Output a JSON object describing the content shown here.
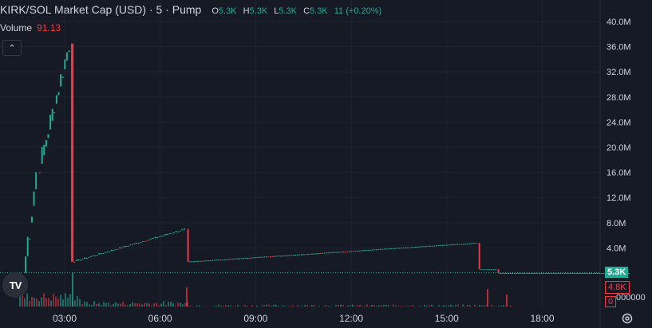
{
  "legend": {
    "title": "KIRK/SOL Market Cap (USD) · 5 · Pump",
    "ohlc": [
      {
        "k": "O",
        "v": "5.3K"
      },
      {
        "k": "H",
        "v": "5.3K"
      },
      {
        "k": "L",
        "v": "5.3K"
      },
      {
        "k": "C",
        "v": "5.3K"
      }
    ],
    "change": "11 (+0.20%)"
  },
  "volume_legend": {
    "label": "Volume",
    "value": "91.13"
  },
  "collapse_icon": "chevron-up-icon",
  "collapse_glyph": "⌃",
  "logo_text": "TV",
  "price_tag": "5.3K",
  "volume_tag": "4.8K",
  "zero_tag": "0",
  "volume_scale_label": "000000",
  "colors": {
    "up": "#22ab94",
    "down": "#f23645",
    "grid": "#1f2331",
    "bg": "#161a25",
    "text": "#d1d4dc"
  },
  "chart_data": {
    "type": "candlestick",
    "y_ticks": [
      "40.0M",
      "36.0M",
      "32.0M",
      "28.0M",
      "24.0M",
      "20.0M",
      "16.0M",
      "12.0M",
      "8.0M",
      "4.0M"
    ],
    "y_tick_values": [
      40,
      36,
      32,
      28,
      24,
      20,
      16,
      12,
      8,
      4
    ],
    "x_ticks": [
      "03:00",
      "06:00",
      "09:00",
      "12:00",
      "15:00",
      "18:00"
    ],
    "x_tick_hours": [
      3,
      6,
      9,
      12,
      15,
      18
    ],
    "ylim_millions": [
      0,
      40
    ],
    "current_price": "5.3K",
    "segments": [
      {
        "t0": 1.75,
        "t1": 2.2,
        "v0": 0.05,
        "v1": 16.0,
        "dir": "up"
      },
      {
        "t0": 2.2,
        "t1": 3.2,
        "v0": 16.0,
        "v1": 36.5,
        "dir": "up"
      },
      {
        "t0": 3.2,
        "t1": 3.28,
        "v0": 36.5,
        "v1": 1.8,
        "dir": "down"
      },
      {
        "t0": 3.28,
        "t1": 6.85,
        "v0": 1.8,
        "v1": 7.0,
        "dir": "up"
      },
      {
        "t0": 6.85,
        "t1": 6.9,
        "v0": 7.0,
        "v1": 1.8,
        "dir": "down"
      },
      {
        "t0": 6.9,
        "t1": 16.0,
        "v0": 1.8,
        "v1": 4.8,
        "dir": "up"
      },
      {
        "t0": 16.0,
        "t1": 16.05,
        "v0": 4.8,
        "v1": 0.6,
        "dir": "down"
      },
      {
        "t0": 16.05,
        "t1": 16.6,
        "v0": 0.6,
        "v1": 0.6,
        "dir": "flat"
      },
      {
        "t0": 16.6,
        "t1": 16.65,
        "v0": 0.6,
        "v1": 0.005,
        "dir": "down"
      },
      {
        "t0": 16.65,
        "t1": 20.8,
        "v0": 0.005,
        "v1": 0.005,
        "dir": "flat"
      }
    ]
  }
}
